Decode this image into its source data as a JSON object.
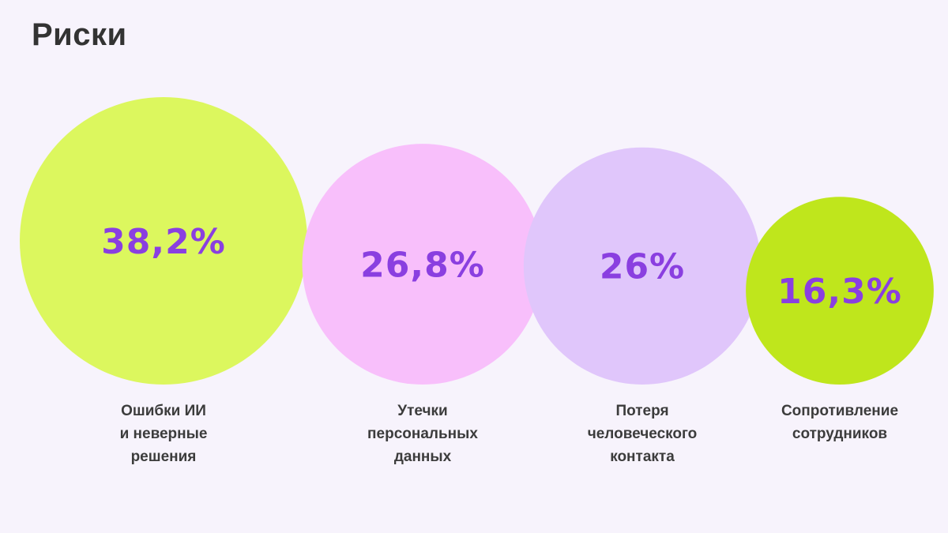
{
  "title": "Риски",
  "colors": {
    "background": "#f7f3fc",
    "title_text": "#333333",
    "value_text": "#8a3fe0",
    "label_text": "#3c3c3c"
  },
  "chart_data": {
    "type": "bubble",
    "title": "",
    "unit": "%",
    "items": [
      {
        "name": "risk-ai-errors",
        "value": 38.2,
        "value_label": "38,2%",
        "label_lines": [
          "Ошибки ИИ",
          "и неверные",
          "решения"
        ],
        "color": "#dcf75e"
      },
      {
        "name": "risk-data-leaks",
        "value": 26.8,
        "value_label": "26,8%",
        "label_lines": [
          "Утечки",
          "персональных",
          "данных"
        ],
        "color": "#f8bffb"
      },
      {
        "name": "risk-loss-of-contact",
        "value": 26,
        "value_label": "26%",
        "label_lines": [
          "Потеря",
          "человеческого",
          "контакта"
        ],
        "color": "#e0c6fb"
      },
      {
        "name": "risk-employee-resistance",
        "value": 16.3,
        "value_label": "16,3%",
        "label_lines": [
          "Сопротивление",
          "сотрудников"
        ],
        "color": "#bfe61c"
      }
    ]
  }
}
